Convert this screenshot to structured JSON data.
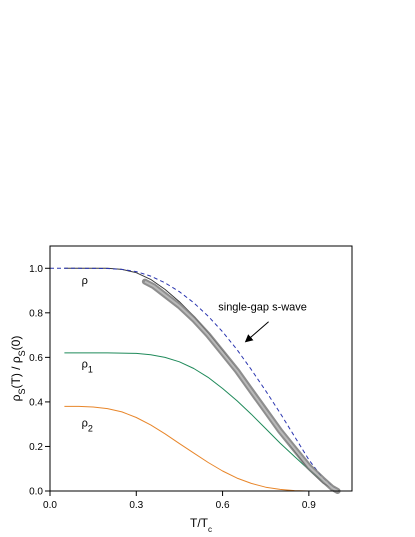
{
  "chart_data": {
    "type": "line",
    "xlabel": {
      "main": "T/T",
      "sub": "c"
    },
    "ylabel": {
      "a": "ρ",
      "a_sub": "S",
      "b": "(T) / ρ",
      "b_sub": "S",
      "c": "(0)"
    },
    "xlim": [
      0.0,
      1.05
    ],
    "ylim": [
      0.0,
      1.1
    ],
    "xticks": [
      0.0,
      0.3,
      0.6,
      0.9
    ],
    "xtick_labels": [
      "0.0",
      "0.3",
      "0.6",
      "0.9"
    ],
    "yticks": [
      0.0,
      0.2,
      0.4,
      0.6,
      0.8,
      1.0
    ],
    "ytick_labels": [
      "0.0",
      "0.2",
      "0.4",
      "0.6",
      "0.8",
      "1.0"
    ],
    "grid": false,
    "legend": "none",
    "series": [
      {
        "name": "ρ",
        "color": "#3a3a3a",
        "style": "solid",
        "x": [
          0.05,
          0.2,
          0.25,
          0.3,
          0.35,
          0.4,
          0.45,
          0.5,
          0.55,
          0.6,
          0.65,
          0.7,
          0.75,
          0.8,
          0.85,
          0.9,
          0.95,
          1.0
        ],
        "y": [
          1.0,
          1.0,
          0.995,
          0.98,
          0.95,
          0.905,
          0.85,
          0.785,
          0.71,
          0.63,
          0.545,
          0.455,
          0.365,
          0.27,
          0.18,
          0.095,
          0.035,
          0.0
        ]
      },
      {
        "name": "ρ1",
        "color": "#1f8a5a",
        "style": "solid",
        "x": [
          0.05,
          0.2,
          0.3,
          0.35,
          0.4,
          0.45,
          0.5,
          0.55,
          0.6,
          0.65,
          0.7,
          0.75,
          0.8,
          0.85,
          0.9,
          0.95,
          1.0
        ],
        "y": [
          0.62,
          0.62,
          0.618,
          0.612,
          0.6,
          0.58,
          0.55,
          0.51,
          0.46,
          0.405,
          0.345,
          0.28,
          0.215,
          0.155,
          0.095,
          0.045,
          0.0
        ]
      },
      {
        "name": "ρ2",
        "color": "#e8862a",
        "style": "solid",
        "x": [
          0.05,
          0.1,
          0.15,
          0.2,
          0.25,
          0.3,
          0.35,
          0.4,
          0.45,
          0.5,
          0.55,
          0.6,
          0.65,
          0.7,
          0.75,
          0.8,
          0.85,
          0.9,
          0.95,
          1.0
        ],
        "y": [
          0.38,
          0.38,
          0.377,
          0.37,
          0.355,
          0.33,
          0.297,
          0.257,
          0.213,
          0.17,
          0.128,
          0.09,
          0.058,
          0.034,
          0.017,
          0.007,
          0.002,
          0.0,
          0.0,
          0.0
        ]
      },
      {
        "name": "single-gap s-wave",
        "color": "#2b36b0",
        "style": "dashed",
        "x": [
          0.0,
          0.1,
          0.2,
          0.25,
          0.3,
          0.35,
          0.4,
          0.45,
          0.5,
          0.55,
          0.6,
          0.65,
          0.7,
          0.75,
          0.8,
          0.85,
          0.9,
          0.95,
          1.0
        ],
        "y": [
          1.0,
          1.0,
          0.999,
          0.995,
          0.985,
          0.965,
          0.935,
          0.895,
          0.845,
          0.785,
          0.715,
          0.635,
          0.545,
          0.45,
          0.35,
          0.245,
          0.14,
          0.055,
          0.0
        ]
      },
      {
        "name": "data",
        "color": "#7a7a7a",
        "style": "band",
        "x": [
          0.33,
          0.36,
          0.4,
          0.45,
          0.5,
          0.55,
          0.6,
          0.65,
          0.7,
          0.75,
          0.8,
          0.85,
          0.9,
          0.95,
          0.98,
          1.0
        ],
        "y": [
          0.94,
          0.92,
          0.88,
          0.83,
          0.77,
          0.7,
          0.62,
          0.54,
          0.45,
          0.36,
          0.27,
          0.19,
          0.11,
          0.05,
          0.015,
          0.0
        ]
      }
    ],
    "annotations": [
      {
        "id": "rho",
        "text": "ρ",
        "sub": "",
        "x": 0.11,
        "y": 0.93
      },
      {
        "id": "rho1",
        "text": "ρ",
        "sub": "1",
        "x": 0.11,
        "y": 0.555
      },
      {
        "id": "rho2",
        "text": "ρ",
        "sub": "2",
        "x": 0.11,
        "y": 0.29
      },
      {
        "id": "swave",
        "text": "single-gap s-wave",
        "sub": "",
        "x": 0.585,
        "y": 0.81
      }
    ],
    "arrow": {
      "from": [
        0.76,
        0.76
      ],
      "to": [
        0.68,
        0.67
      ]
    }
  }
}
